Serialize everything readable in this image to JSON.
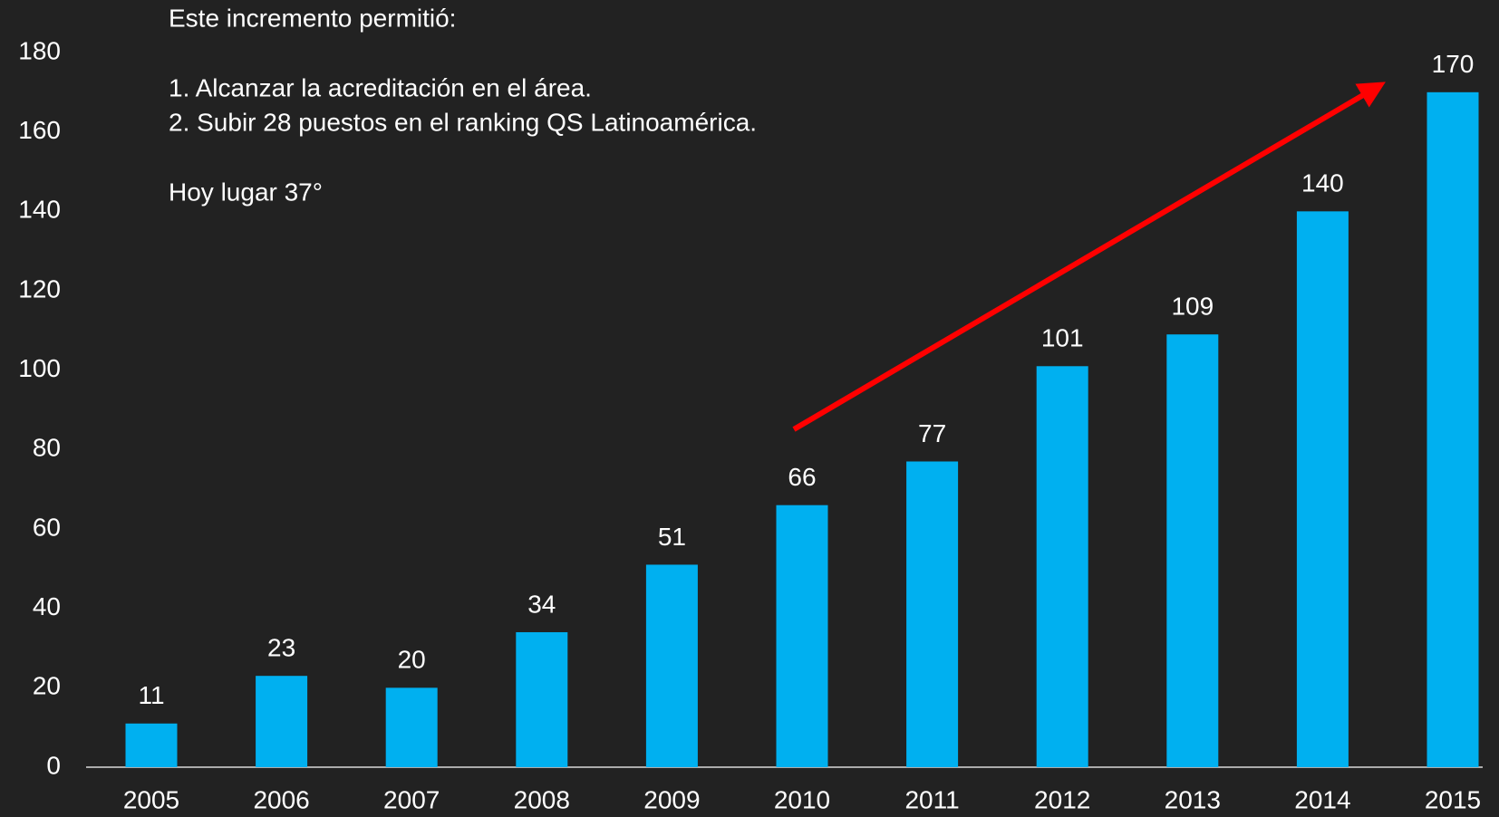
{
  "chart_data": {
    "type": "bar",
    "annotations": [
      "Este incremento permitió:",
      "1.  Alcanzar la acreditación en el área.",
      "2.  Subir 28 puestos en el ranking QS Latinoamérica.",
      "Hoy lugar 37°"
    ],
    "categories": [
      "2005",
      "2006",
      "2007",
      "2008",
      "2009",
      "2010",
      "2011",
      "2012",
      "2013",
      "2014",
      "2015"
    ],
    "values": [
      11,
      23,
      20,
      34,
      51,
      66,
      77,
      101,
      109,
      140,
      170
    ],
    "color": "#00b0f0",
    "ylim": [
      0,
      180
    ],
    "yticks": [
      0,
      20,
      40,
      60,
      80,
      100,
      120,
      140,
      160,
      180
    ],
    "grid": false
  }
}
